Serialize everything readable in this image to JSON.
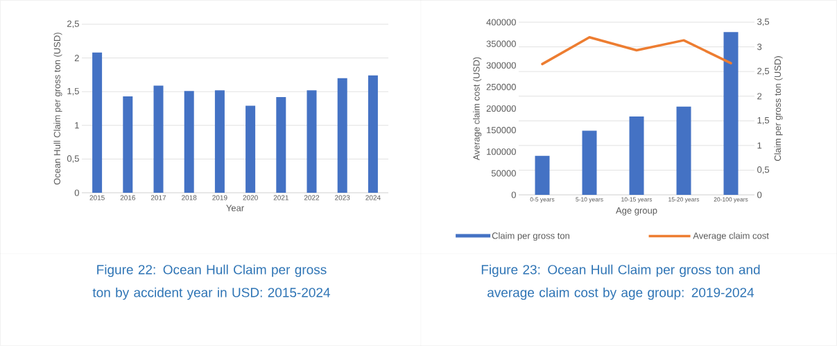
{
  "chart_data": [
    {
      "type": "bar",
      "title": "Figure 22: Ocean Hull Claim per gross ton by accident year in USD: 2015-2024",
      "xlabel": "Year",
      "ylabel": "Ocean Hull Claim per gross ton (USD)",
      "categories": [
        "2015",
        "2016",
        "2017",
        "2018",
        "2019",
        "2020",
        "2021",
        "2022",
        "2023",
        "2024"
      ],
      "values": [
        2.08,
        1.43,
        1.59,
        1.51,
        1.52,
        1.29,
        1.42,
        1.52,
        1.7,
        1.74
      ],
      "color": "#4472c4",
      "ylim": [
        0,
        2.5
      ],
      "yticks": [
        0,
        {
          "value": 0.5,
          "label": "0,5"
        },
        1,
        {
          "value": 1.5,
          "label": "1,5"
        },
        2,
        {
          "value": 2.5,
          "label": "2,5"
        }
      ],
      "grid": "y"
    },
    {
      "type": "bar",
      "title": "Figure 23: Ocean Hull Claim per gross ton and average claim cost by age group: 2019-2024",
      "xlabel": "Age group",
      "ylabel": "Average claim cost (USD)",
      "y2label": "Claim per gross ton (USD)",
      "categories": [
        "0-5 years",
        "5-10 years",
        "10-15 years",
        "15-20 years",
        "20-100 years"
      ],
      "series": [
        {
          "name": "Claim per gross ton",
          "type": "bar",
          "axis": "y2",
          "color": "#4472c4",
          "values": [
            0.79,
            1.3,
            1.59,
            1.79,
            3.3
          ]
        },
        {
          "name": "Average claim cost",
          "type": "line",
          "color": "#ed7d31",
          "values": [
            303000,
            365000,
            335000,
            358000,
            305000
          ]
        }
      ],
      "ylim": [
        0,
        400000
      ],
      "yticks": [
        0,
        50000,
        100000,
        150000,
        200000,
        250000,
        300000,
        350000,
        400000
      ],
      "y2lim": [
        0,
        3.5
      ],
      "y2ticks": [
        0,
        {
          "value": 0.5,
          "label": "0,5"
        },
        1,
        {
          "value": 1.5,
          "label": "1,5"
        },
        2,
        {
          "value": 2.5,
          "label": "2,5"
        },
        3,
        {
          "value": 3.5,
          "label": "3,5"
        }
      ],
      "legend": "bottom",
      "grid": "y"
    }
  ]
}
